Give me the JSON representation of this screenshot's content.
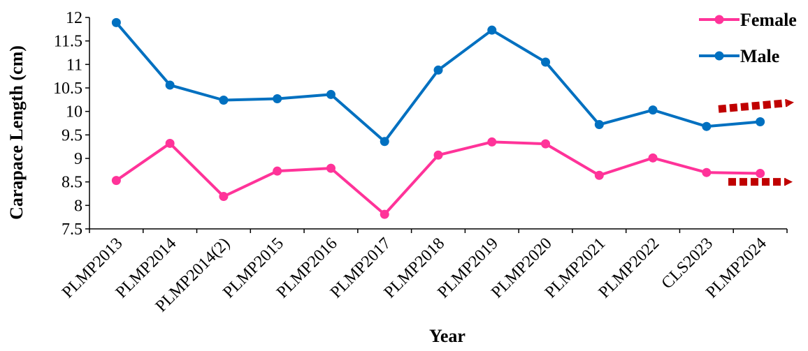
{
  "chart_data": {
    "type": "line",
    "categories": [
      "PLMP2013",
      "PLMP2014",
      "PLMP2014(2)",
      "PLMP2015",
      "PLMP2016",
      "PLMP2017",
      "PLMP2018",
      "PLMP2019",
      "PLMP2020",
      "PLMP2021",
      "PLMP2022",
      "CLS2023",
      "PLMP2024"
    ],
    "series": [
      {
        "name": "Female",
        "color": "#ff3399",
        "values": [
          8.53,
          9.32,
          8.19,
          8.73,
          8.79,
          7.81,
          9.07,
          9.35,
          9.31,
          8.64,
          9.01,
          8.7,
          8.68
        ]
      },
      {
        "name": "Male",
        "color": "#0070c0",
        "values": [
          11.89,
          10.56,
          10.24,
          10.27,
          10.36,
          9.36,
          10.88,
          11.73,
          11.05,
          9.72,
          10.03,
          9.68,
          9.78
        ]
      }
    ],
    "xlabel": "Year",
    "ylabel": "Carapace Length (cm)",
    "ylim": [
      7.5,
      12
    ],
    "yticks": [
      "7.5",
      "8",
      "8.5",
      "9",
      "9.5",
      "10",
      "10.5",
      "11",
      "11.5",
      "12"
    ],
    "grid": false,
    "legend_position": "top-right",
    "annotations": [
      {
        "type": "dotted-arrow",
        "color": "#c00000",
        "series": "Male",
        "trend": "slightly increasing"
      },
      {
        "type": "dotted-arrow",
        "color": "#c00000",
        "series": "Female",
        "trend": "flat"
      }
    ]
  }
}
